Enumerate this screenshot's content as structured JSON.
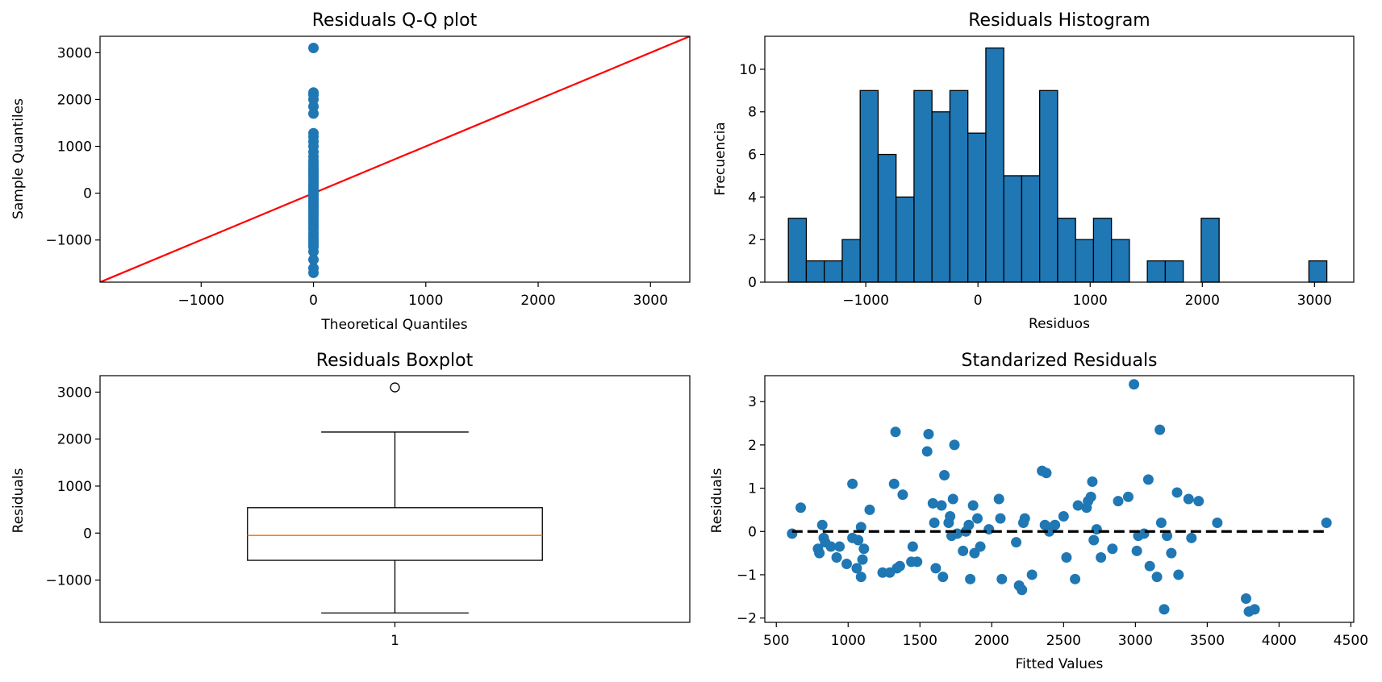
{
  "chart_data": [
    {
      "type": "scatter",
      "title": "Residuals Q-Q plot",
      "xlabel": "Theoretical Quantiles",
      "ylabel": "Sample Quantiles",
      "xlim": [
        -1900,
        3350
      ],
      "ylim": [
        -1900,
        3350
      ],
      "xticks": [
        -1000,
        0,
        1000,
        2000,
        3000
      ],
      "yticks": [
        -1000,
        0,
        1000,
        2000,
        3000
      ],
      "xtick_labels": [
        "−1000",
        "0",
        "1000",
        "2000",
        "3000"
      ],
      "ytick_labels": [
        "−1000",
        "0",
        "1000",
        "2000",
        "3000"
      ],
      "x_value": 0,
      "points_y": [
        3100,
        2150,
        2100,
        2000,
        1850,
        1700,
        1280,
        1200,
        1100,
        1000,
        880,
        780,
        700,
        640,
        580,
        520,
        470,
        420,
        360,
        300,
        240,
        190,
        150,
        110,
        60,
        20,
        -20,
        -60,
        -110,
        -160,
        -210,
        -260,
        -310,
        -360,
        -420,
        -480,
        -540,
        -600,
        -660,
        -720,
        -780,
        -850,
        -920,
        -980,
        -1030,
        -1090,
        -1150,
        -1250,
        -1420,
        -1600,
        -1700
      ],
      "reference_line": {
        "slope": 1,
        "intercept": 0,
        "color": "#ff0000"
      },
      "point_color": "#1f77b4"
    },
    {
      "type": "bar",
      "title": "Residuals Histogram",
      "xlabel": "Residuos",
      "ylabel": "Frecuencia",
      "xlim": [
        -1900,
        3350
      ],
      "ylim": [
        0,
        11.55
      ],
      "xticks": [
        -1000,
        0,
        1000,
        2000,
        3000
      ],
      "yticks": [
        0,
        2,
        4,
        6,
        8,
        10
      ],
      "xtick_labels": [
        "−1000",
        "0",
        "1000",
        "2000",
        "3000"
      ],
      "ytick_labels": [
        "0",
        "2",
        "4",
        "6",
        "8",
        "10"
      ],
      "bin_start": -1690,
      "bin_width": 160,
      "counts": [
        3,
        1,
        1,
        2,
        9,
        6,
        4,
        9,
        8,
        9,
        7,
        11,
        5,
        5,
        9,
        3,
        2,
        3,
        2,
        0,
        1,
        1,
        0,
        3,
        0,
        0,
        0,
        0,
        0,
        1
      ],
      "bar_color": "#1f77b4"
    },
    {
      "type": "box",
      "title": "Residuals Boxplot",
      "ylabel": "Residuals",
      "xlim": [
        0.5,
        1.5
      ],
      "ylim": [
        -1900,
        3350
      ],
      "yticks": [
        -1000,
        0,
        1000,
        2000,
        3000
      ],
      "ytick_labels": [
        "−1000",
        "0",
        "1000",
        "2000",
        "3000"
      ],
      "categories": [
        "1"
      ],
      "whisker_low": -1700,
      "q1": -580,
      "median": -50,
      "q3": 540,
      "whisker_high": 2150,
      "outliers": [
        3100
      ],
      "median_color": "#ff7f0e"
    },
    {
      "type": "scatter",
      "title": "Standarized Residuals",
      "xlabel": "Fitted Values",
      "ylabel": "Residuals",
      "xlim": [
        420,
        4520
      ],
      "ylim": [
        -2.1,
        3.6
      ],
      "xticks": [
        500,
        1000,
        1500,
        2000,
        2500,
        3000,
        3500,
        4000,
        4500
      ],
      "yticks": [
        -2,
        -1,
        0,
        1,
        2,
        3
      ],
      "xtick_labels": [
        "500",
        "1000",
        "1500",
        "2000",
        "2500",
        "3000",
        "3500",
        "4000",
        "4500"
      ],
      "ytick_labels": [
        "−2",
        "−1",
        "0",
        "1",
        "2",
        "3"
      ],
      "points": [
        [
          610,
          -0.05
        ],
        [
          670,
          0.55
        ],
        [
          790,
          -0.4
        ],
        [
          800,
          -0.5
        ],
        [
          820,
          0.15
        ],
        [
          830,
          -0.15
        ],
        [
          840,
          -0.25
        ],
        [
          880,
          -0.35
        ],
        [
          920,
          -0.6
        ],
        [
          940,
          -0.35
        ],
        [
          990,
          -0.75
        ],
        [
          1030,
          1.1
        ],
        [
          1030,
          -0.15
        ],
        [
          1060,
          -0.85
        ],
        [
          1070,
          -0.2
        ],
        [
          1090,
          0.1
        ],
        [
          1090,
          -1.05
        ],
        [
          1100,
          -0.65
        ],
        [
          1110,
          -0.4
        ],
        [
          1150,
          0.5
        ],
        [
          1240,
          -0.95
        ],
        [
          1290,
          -0.95
        ],
        [
          1320,
          1.1
        ],
        [
          1330,
          2.3
        ],
        [
          1340,
          -0.85
        ],
        [
          1360,
          -0.8
        ],
        [
          1380,
          0.85
        ],
        [
          1440,
          -0.7
        ],
        [
          1450,
          -0.35
        ],
        [
          1480,
          -0.7
        ],
        [
          1550,
          1.85
        ],
        [
          1560,
          2.25
        ],
        [
          1590,
          0.65
        ],
        [
          1600,
          0.2
        ],
        [
          1610,
          -0.85
        ],
        [
          1650,
          0.6
        ],
        [
          1660,
          -1.05
        ],
        [
          1670,
          1.3
        ],
        [
          1700,
          0.2
        ],
        [
          1710,
          0.35
        ],
        [
          1720,
          -0.1
        ],
        [
          1730,
          0.75
        ],
        [
          1740,
          2.0
        ],
        [
          1760,
          -0.05
        ],
        [
          1800,
          -0.45
        ],
        [
          1820,
          0.0
        ],
        [
          1840,
          0.15
        ],
        [
          1850,
          -1.1
        ],
        [
          1870,
          0.6
        ],
        [
          1880,
          -0.5
        ],
        [
          1900,
          0.3
        ],
        [
          1920,
          -0.35
        ],
        [
          1980,
          0.05
        ],
        [
          2050,
          0.75
        ],
        [
          2060,
          0.3
        ],
        [
          2070,
          -1.1
        ],
        [
          2170,
          -0.25
        ],
        [
          2190,
          -1.25
        ],
        [
          2210,
          -1.35
        ],
        [
          2220,
          0.2
        ],
        [
          2230,
          0.3
        ],
        [
          2280,
          -1.0
        ],
        [
          2350,
          1.4
        ],
        [
          2370,
          0.15
        ],
        [
          2380,
          1.35
        ],
        [
          2400,
          0.0
        ],
        [
          2420,
          0.1
        ],
        [
          2440,
          0.15
        ],
        [
          2500,
          0.35
        ],
        [
          2520,
          -0.6
        ],
        [
          2580,
          -1.1
        ],
        [
          2600,
          0.6
        ],
        [
          2660,
          0.55
        ],
        [
          2670,
          0.7
        ],
        [
          2690,
          0.8
        ],
        [
          2700,
          1.15
        ],
        [
          2710,
          -0.2
        ],
        [
          2730,
          0.05
        ],
        [
          2760,
          -0.6
        ],
        [
          2840,
          -0.4
        ],
        [
          2880,
          0.7
        ],
        [
          2950,
          0.8
        ],
        [
          2990,
          3.4
        ],
        [
          3010,
          -0.45
        ],
        [
          3020,
          -0.1
        ],
        [
          3060,
          -0.05
        ],
        [
          3090,
          1.2
        ],
        [
          3100,
          -0.8
        ],
        [
          3150,
          -1.05
        ],
        [
          3170,
          2.35
        ],
        [
          3180,
          0.2
        ],
        [
          3200,
          -1.8
        ],
        [
          3220,
          -0.1
        ],
        [
          3250,
          -0.5
        ],
        [
          3290,
          0.9
        ],
        [
          3300,
          -1.0
        ],
        [
          3370,
          0.75
        ],
        [
          3390,
          -0.15
        ],
        [
          3440,
          0.7
        ],
        [
          3570,
          0.2
        ],
        [
          3770,
          -1.55
        ],
        [
          3790,
          -1.85
        ],
        [
          3830,
          -1.8
        ],
        [
          4330,
          0.2
        ]
      ],
      "reference_line": {
        "y": 0,
        "style": "dashed",
        "color": "#000000"
      },
      "point_color": "#1f77b4"
    }
  ]
}
